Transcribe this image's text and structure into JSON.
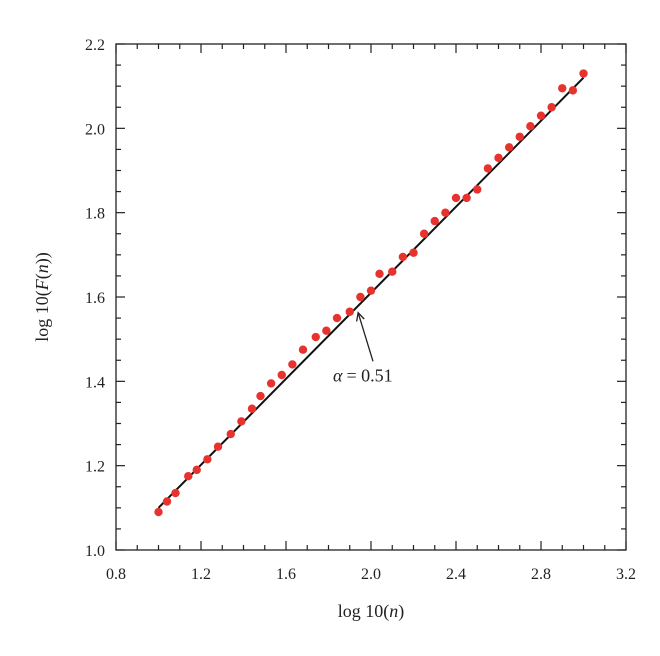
{
  "chart_data": {
    "type": "scatter",
    "title": "",
    "xlabel_prefix": "log 10(",
    "xlabel_var": "n",
    "xlabel_suffix": ")",
    "ylabel_prefix": "log 10(",
    "ylabel_var": "F",
    "ylabel_mid": "(",
    "ylabel_var2": "n",
    "ylabel_suffix": "))",
    "xlim": [
      0.8,
      3.2
    ],
    "ylim": [
      1.0,
      2.2
    ],
    "xticks": [
      "0.8",
      "1.2",
      "1.6",
      "2.0",
      "2.4",
      "2.8",
      "3.2"
    ],
    "yticks": [
      "1.0",
      "1.2",
      "1.4",
      "1.6",
      "1.8",
      "2.0",
      "2.2"
    ],
    "grid": false,
    "point_color": "#e8322e",
    "line_color": "#111111",
    "series": [
      {
        "x": [
          1.0,
          1.04,
          1.08,
          1.14,
          1.18,
          1.23,
          1.28,
          1.34,
          1.39,
          1.44,
          1.48,
          1.53,
          1.58,
          1.63,
          1.68,
          1.74,
          1.79,
          1.84,
          1.9,
          1.95,
          2.0,
          2.04,
          2.1,
          2.15,
          2.2,
          2.25,
          2.3,
          2.35,
          2.4,
          2.45,
          2.5,
          2.55,
          2.6,
          2.65,
          2.7,
          2.75,
          2.8,
          2.85,
          2.9,
          2.95,
          3.0
        ],
        "y": [
          1.09,
          1.115,
          1.135,
          1.175,
          1.19,
          1.215,
          1.245,
          1.275,
          1.305,
          1.335,
          1.365,
          1.395,
          1.415,
          1.44,
          1.475,
          1.505,
          1.52,
          1.55,
          1.565,
          1.6,
          1.615,
          1.655,
          1.66,
          1.695,
          1.705,
          1.75,
          1.78,
          1.8,
          1.835,
          1.835,
          1.855,
          1.905,
          1.93,
          1.955,
          1.98,
          2.005,
          2.03,
          2.05,
          2.095,
          2.09,
          2.13
        ]
      }
    ],
    "fit_line": {
      "x": [
        1.0,
        3.0
      ],
      "y": [
        1.1,
        2.12
      ]
    },
    "annotation": {
      "symbol": "α",
      "text": "= 0.51",
      "point": [
        1.93,
        1.57
      ],
      "text_at": [
        2.0,
        1.4
      ]
    }
  }
}
